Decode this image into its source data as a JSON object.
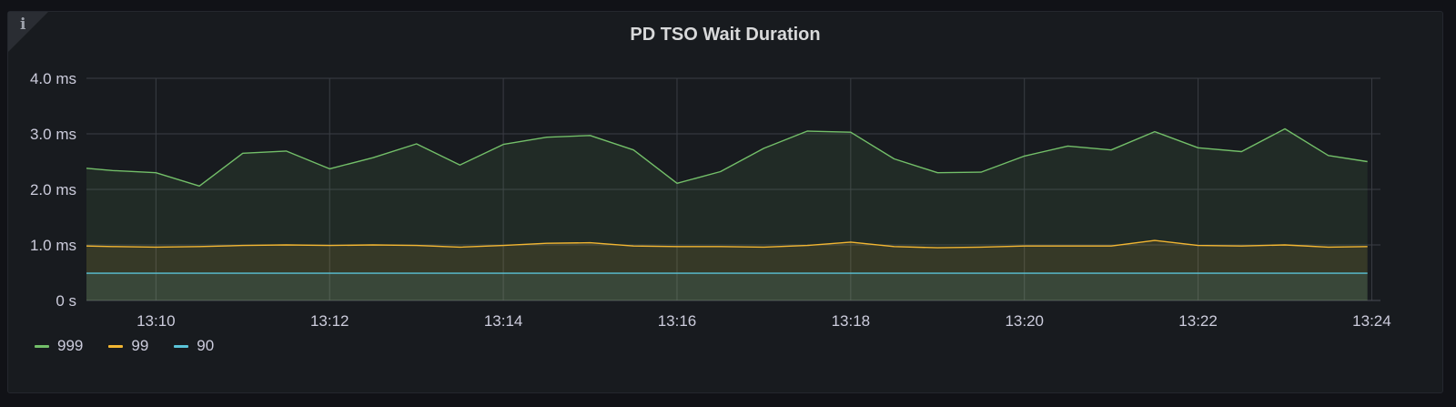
{
  "panel": {
    "title": "PD TSO Wait Duration",
    "info_icon": "info-icon"
  },
  "chart_data": {
    "type": "area",
    "title": "PD TSO Wait Duration",
    "xlabel": "",
    "ylabel": "",
    "x_ticks": [
      "13:10",
      "13:12",
      "13:14",
      "13:16",
      "13:18",
      "13:20",
      "13:22",
      "13:24"
    ],
    "x_tick_minutes": [
      10,
      12,
      14,
      16,
      18,
      20,
      22,
      24
    ],
    "xlim_minutes": [
      9.2,
      24.0
    ],
    "y_ticks": [
      "0 s",
      "1.0 ms",
      "2.0 ms",
      "3.0 ms",
      "4.0 ms"
    ],
    "y_tick_values": [
      0,
      1,
      2,
      3,
      4
    ],
    "ylim": [
      0,
      4
    ],
    "y_unit": "ms",
    "grid": true,
    "legend_position": "bottom-left",
    "x": [
      9.2,
      9.5,
      10.0,
      10.5,
      11.0,
      11.5,
      12.0,
      12.5,
      13.0,
      13.5,
      14.0,
      14.5,
      15.0,
      15.5,
      16.0,
      16.5,
      17.0,
      17.5,
      18.0,
      18.5,
      19.0,
      19.5,
      20.0,
      20.5,
      21.0,
      21.5,
      22.0,
      22.5,
      23.0,
      23.5,
      23.95
    ],
    "series": [
      {
        "name": "999",
        "color": "#73bf69",
        "values": [
          2.38,
          2.34,
          2.3,
          2.06,
          2.65,
          2.69,
          2.37,
          2.57,
          2.82,
          2.44,
          2.81,
          2.94,
          2.97,
          2.71,
          2.11,
          2.32,
          2.74,
          3.05,
          3.03,
          2.55,
          2.3,
          2.31,
          2.6,
          2.78,
          2.71,
          3.04,
          2.75,
          2.68,
          3.09,
          2.61,
          2.5
        ]
      },
      {
        "name": "99",
        "color": "#f2b632",
        "values": [
          0.98,
          0.97,
          0.96,
          0.97,
          0.99,
          1.0,
          0.99,
          1.0,
          0.99,
          0.96,
          0.99,
          1.03,
          1.04,
          0.98,
          0.97,
          0.97,
          0.96,
          0.99,
          1.05,
          0.97,
          0.95,
          0.96,
          0.98,
          0.98,
          0.98,
          1.08,
          0.99,
          0.98,
          1.0,
          0.96,
          0.97
        ]
      },
      {
        "name": "90",
        "color": "#5ac4d8",
        "values": [
          0.49,
          0.49,
          0.49,
          0.49,
          0.49,
          0.49,
          0.49,
          0.49,
          0.49,
          0.49,
          0.49,
          0.49,
          0.49,
          0.49,
          0.49,
          0.49,
          0.49,
          0.49,
          0.49,
          0.49,
          0.49,
          0.49,
          0.49,
          0.49,
          0.49,
          0.49,
          0.49,
          0.49,
          0.49,
          0.49,
          0.49
        ]
      }
    ]
  }
}
